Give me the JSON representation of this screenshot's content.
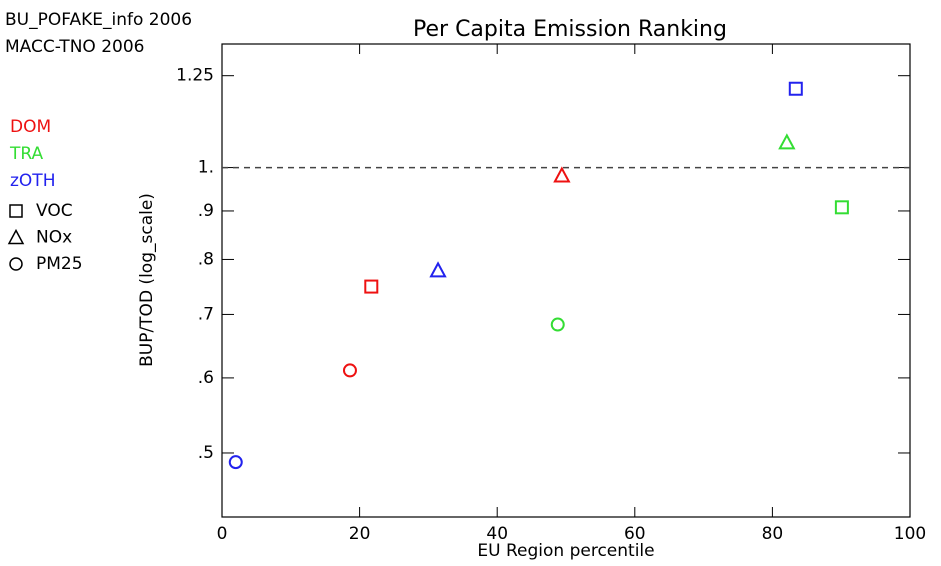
{
  "chart_data": {
    "type": "scatter",
    "title": "Per Capita Emission Ranking",
    "annotations": [
      "BU_POFAKE_info 2006",
      "MACC-TNO 2006"
    ],
    "x_label": "EU Region percentile",
    "y_label": "BUP/TOD (log_scale)",
    "xlim": [
      0,
      100
    ],
    "xticks": [
      0,
      20,
      40,
      60,
      80,
      100
    ],
    "ylim": [
      0.428,
      1.35
    ],
    "y_log": true,
    "yticks": [
      1.25,
      {
        "value": 1,
        "label": "1."
      },
      {
        "value": 0.9,
        "label": ".9"
      },
      {
        "value": 0.8,
        "label": ".8"
      },
      {
        "value": 0.7,
        "label": ".7"
      },
      {
        "value": 0.6,
        "label": ".6"
      },
      {
        "value": 0.5,
        "label": ".5"
      }
    ],
    "reference_line": 1,
    "series": [
      {
        "name": "DOM",
        "color": "#ee1111",
        "x": [
          21.7,
          49.4,
          18.6
        ],
        "values": [
          0.749,
          0.981,
          0.611
        ],
        "markers": [
          "square",
          "triangle",
          "circle"
        ]
      },
      {
        "name": "TRA",
        "color": "#33dd33",
        "x": [
          90.1,
          82.1,
          48.8
        ],
        "values": [
          0.908,
          1.063,
          0.683
        ],
        "markers": [
          "square",
          "triangle",
          "circle"
        ]
      },
      {
        "name": "zOTH",
        "color": "#2222ee",
        "x": [
          83.4,
          31.4,
          2.0
        ],
        "values": [
          1.211,
          0.779,
          0.489
        ],
        "markers": [
          "square",
          "triangle",
          "circle"
        ]
      }
    ],
    "marker_legend": [
      {
        "name": "VOC",
        "marker": "square"
      },
      {
        "name": "NOx",
        "marker": "triangle"
      },
      {
        "name": "PM25",
        "marker": "circle"
      }
    ]
  }
}
